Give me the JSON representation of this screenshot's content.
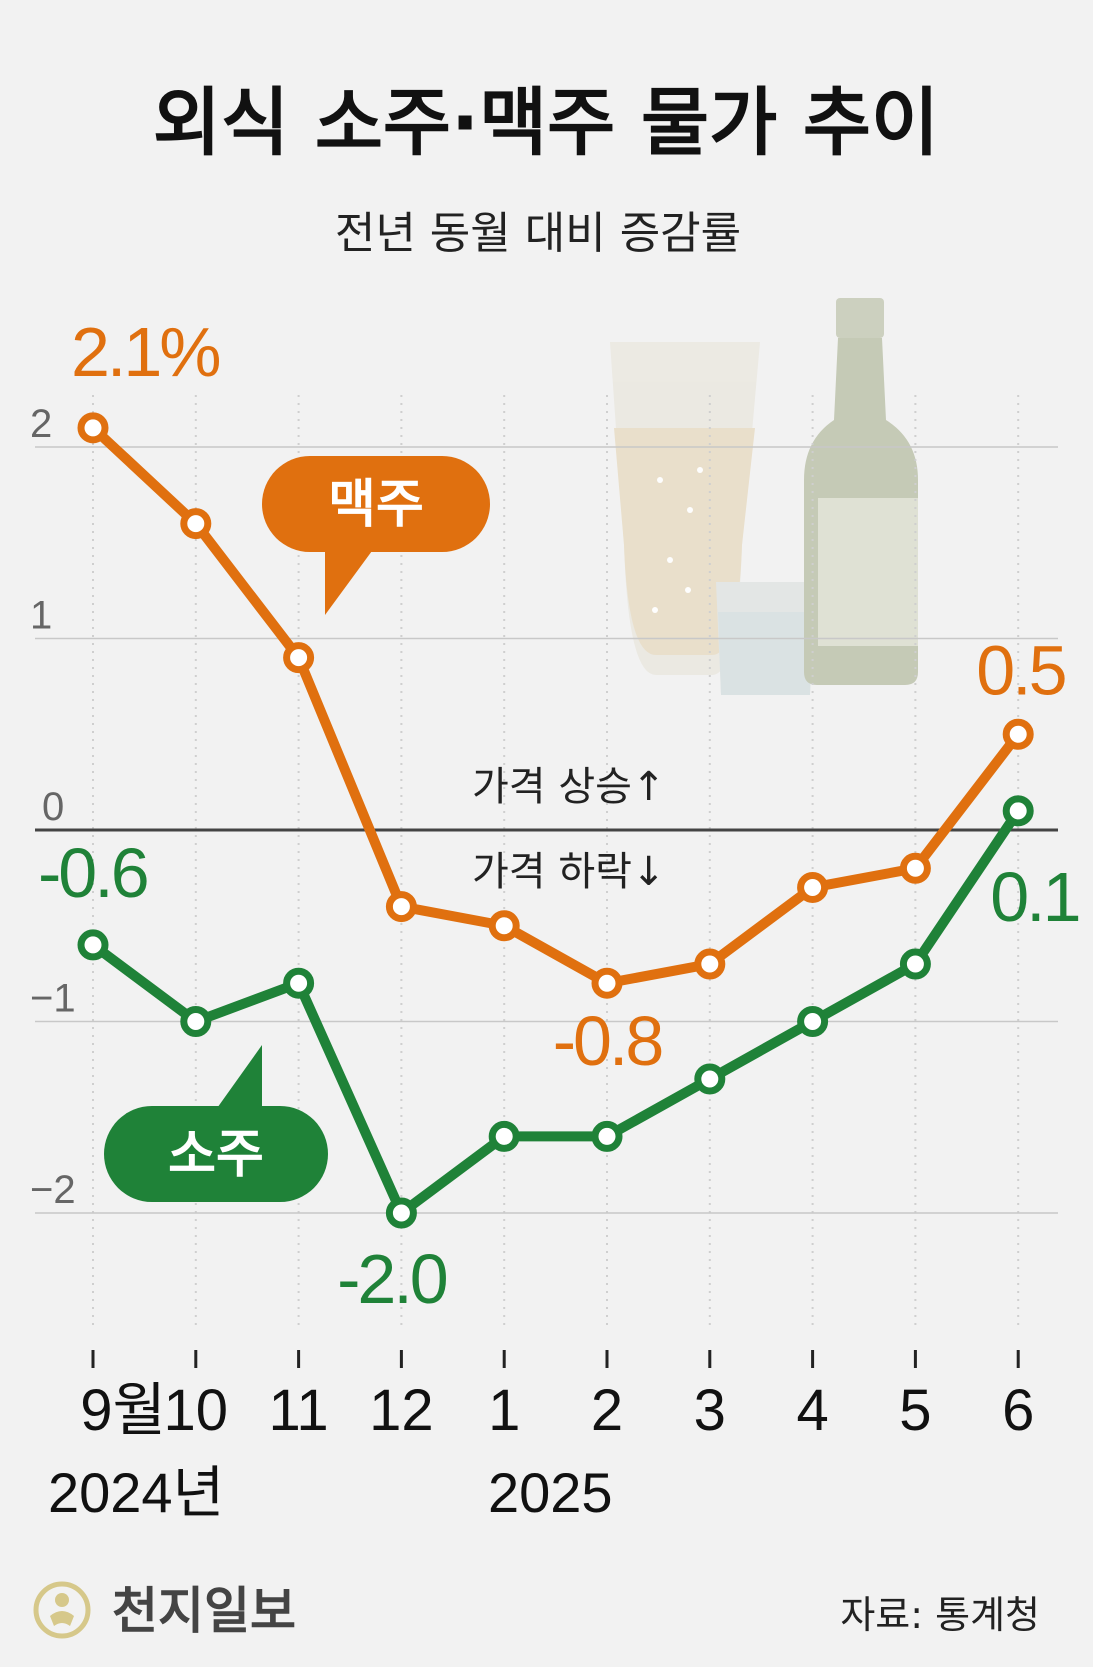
{
  "title": "외식 소주·맥주 물가 추이",
  "subtitle": "전년 동월 대비 증감률",
  "direction_labels": {
    "up": "가격 상승↑",
    "down": "가격 하락↓"
  },
  "source": "자료: 통계청",
  "publisher": "천지일보",
  "colors": {
    "beer": "#e0700f",
    "soju": "#1f8238",
    "grid": "#c8c8c8",
    "zero": "#444444",
    "background": "#f2f2f2"
  },
  "chart_data": {
    "type": "line",
    "categories": [
      "9월",
      "10",
      "11",
      "12",
      "1",
      "2",
      "3",
      "4",
      "5",
      "6"
    ],
    "year_labels": [
      "2024년",
      "2025"
    ],
    "ylim": [
      -2.75,
      2.3
    ],
    "yticks": [
      2,
      1,
      0,
      -1,
      -2
    ],
    "ytick_labels": [
      "2",
      "1",
      "0",
      "−1",
      "−2"
    ],
    "grid": true,
    "series": [
      {
        "name": "맥주",
        "color": "#e0700f",
        "values": [
          2.1,
          1.6,
          0.9,
          -0.4,
          -0.5,
          -0.8,
          -0.7,
          -0.3,
          -0.2,
          0.5
        ]
      },
      {
        "name": "소주",
        "color": "#1f8238",
        "values": [
          -0.6,
          -1.0,
          -0.8,
          -2.0,
          -1.6,
          -1.6,
          -1.3,
          -1.0,
          -0.7,
          0.1
        ]
      }
    ],
    "annotations": [
      {
        "series": "맥주",
        "index": 0,
        "text": "2.1%"
      },
      {
        "series": "맥주",
        "index": 5,
        "text": "-0.8"
      },
      {
        "series": "맥주",
        "index": 9,
        "text": "0.5"
      },
      {
        "series": "소주",
        "index": 0,
        "text": "-0.6"
      },
      {
        "series": "소주",
        "index": 3,
        "text": "-2.0"
      },
      {
        "series": "소주",
        "index": 9,
        "text": "0.1"
      }
    ]
  }
}
